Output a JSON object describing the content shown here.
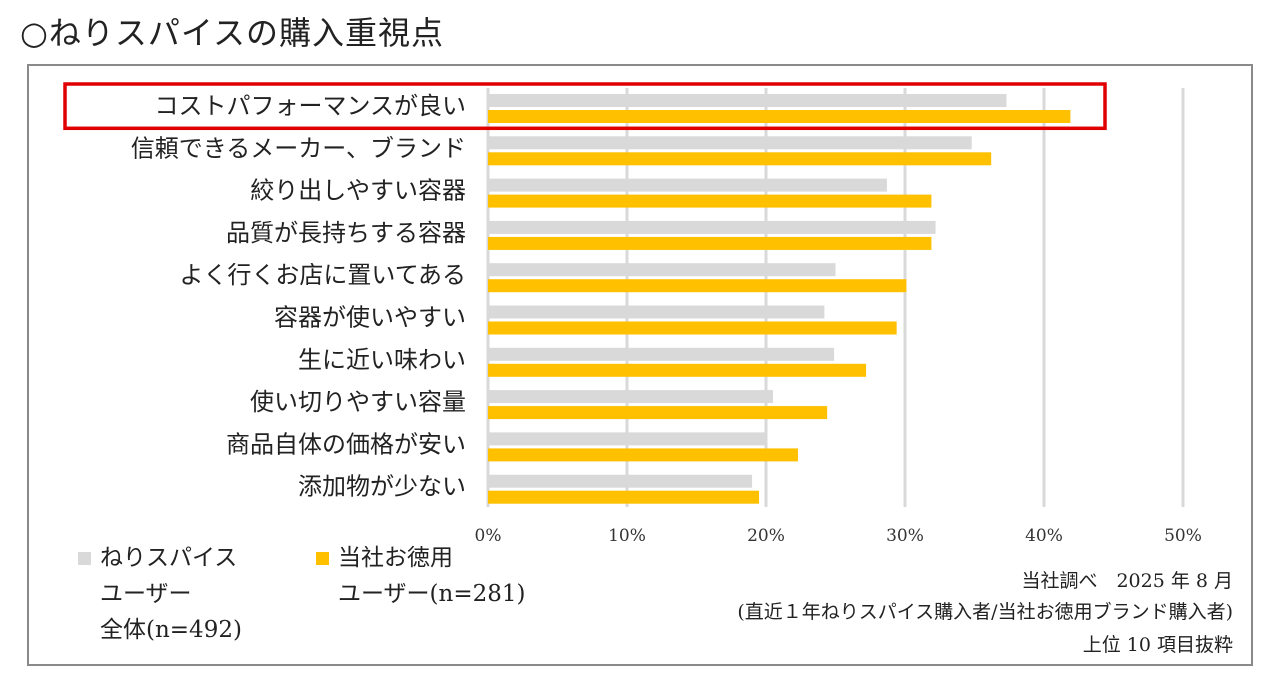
{
  "title": "○ねりスパイスの購入重視点",
  "chart_data": {
    "type": "bar",
    "orientation": "horizontal",
    "categories": [
      "コストパフォーマンスが良い",
      "信頼できるメーカー、ブランド",
      "絞り出しやすい容器",
      "品質が長持ちする容器",
      "よく行くお店に置いてある",
      "容器が使いやすい",
      "生に近い味わい",
      "使い切りやすい容量",
      "商品自体の価格が安い",
      "添加物が少ない"
    ],
    "series": [
      {
        "name": "ねりスパイスユーザー全体(n=492)",
        "color": "#d9d9d9",
        "values": [
          37.3,
          34.8,
          28.7,
          32.2,
          25.0,
          24.2,
          24.9,
          20.5,
          20.0,
          19.0
        ]
      },
      {
        "name": "当社お徳用ユーザー(n=281)",
        "color": "#ffc000",
        "values": [
          41.9,
          36.2,
          31.9,
          31.9,
          30.1,
          29.4,
          27.2,
          24.4,
          22.3,
          19.5
        ]
      }
    ],
    "xlim": [
      0,
      50
    ],
    "x_ticks": [
      "0%",
      "10%",
      "20%",
      "30%",
      "40%",
      "50%"
    ],
    "highlighted_category": "コストパフォーマンスが良い",
    "highlight_color": "#e00000",
    "grid_color": "#d9d9d9",
    "legend_position": "bottom-left"
  },
  "legend": [
    {
      "label": "ねりスパイス\nユーザー\n全体(n=492)",
      "color": "#d9d9d9"
    },
    {
      "label": "当社お徳用\nユーザー(n=281)",
      "color": "#ffc000"
    }
  ],
  "notes": {
    "source": "当社調べ　2025 年 8 月",
    "scope": "(直近１年ねりスパイス購入者/当社お徳用ブランド購入者)",
    "extract": "上位 10 項目抜粋"
  }
}
